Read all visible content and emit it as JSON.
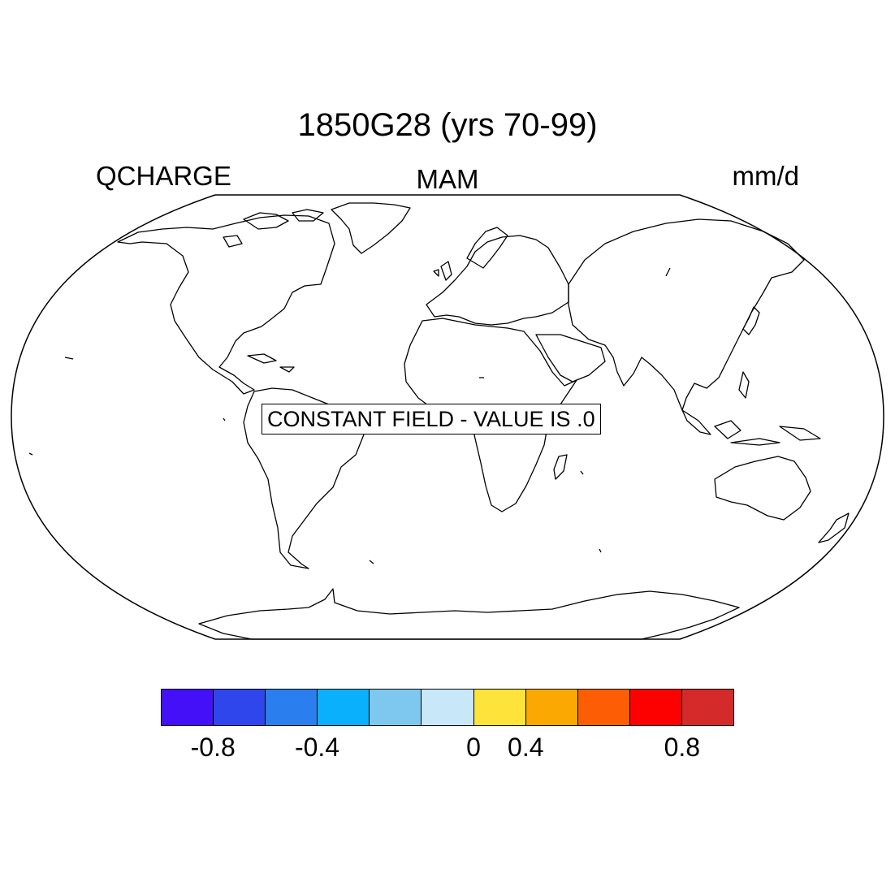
{
  "title": "1850G28 (yrs 70-99)",
  "left_label": "QCHARGE",
  "center_label": "MAM",
  "right_label": "mm/d",
  "constant_field_text": "CONSTANT FIELD - VALUE IS .0",
  "map": {
    "projection": "robinson",
    "features": [
      "coastlines",
      "map-frame"
    ]
  },
  "colorbar": {
    "colors": [
      "#4410f7",
      "#2f46ec",
      "#2a7eee",
      "#0bb0fc",
      "#7ec8f0",
      "#c8e7f8",
      "#fde33a",
      "#fca803",
      "#fd5e05",
      "#fd0101",
      "#d42a2a"
    ],
    "tick_values": [
      -0.8,
      -0.4,
      0,
      0.4,
      0.8
    ],
    "tick_labels": [
      "-0.8",
      "-0.4",
      "0",
      "0.4",
      "0.8"
    ],
    "level_range": [
      -1.0,
      1.0
    ]
  }
}
